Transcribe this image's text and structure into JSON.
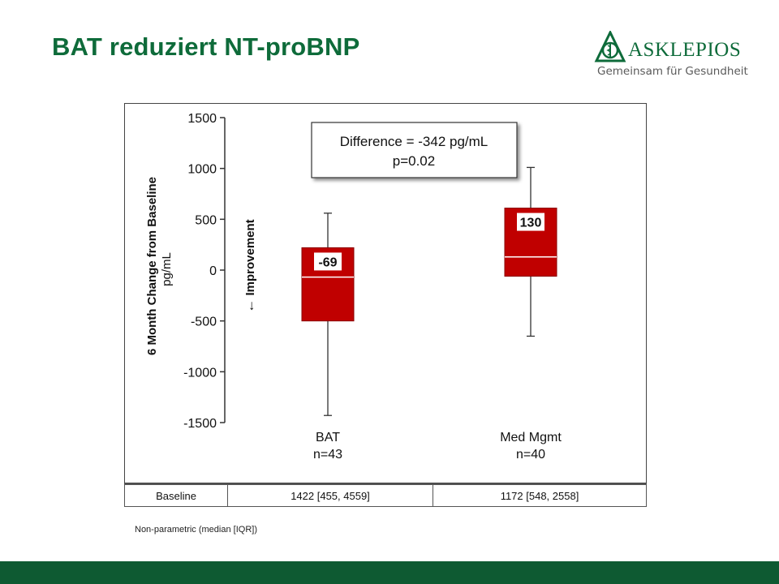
{
  "slide": {
    "title": "BAT reduziert NT-proBNP"
  },
  "logo": {
    "name": "ASKLEPIOS",
    "tagline": "Gemeinsam für Gesundheit"
  },
  "chart_data": {
    "type": "boxplot",
    "ylabel": "6 Month Change from Baseline",
    "yunit": "pg/mL",
    "ylim": [
      -1500,
      1500
    ],
    "yticks": [
      1500,
      1000,
      500,
      0,
      -500,
      -1000,
      -1500
    ],
    "annotation": {
      "line1": "Difference = -342 pg/mL",
      "line2": "p=0.02"
    },
    "arrow_label": "Improvement",
    "groups": [
      {
        "label": "BAT",
        "n_label": "n=43",
        "median": -69,
        "median_label": "-69",
        "q1": -500,
        "q3": 220,
        "whisker_low": -1430,
        "whisker_high": 560
      },
      {
        "label": "Med Mgmt",
        "n_label": "n=40",
        "median": 130,
        "median_label": "130",
        "q1": -60,
        "q3": 610,
        "whisker_low": -650,
        "whisker_high": 1010
      }
    ],
    "box_color": "#c00000"
  },
  "baseline": {
    "label": "Baseline",
    "bat": "1422 [455, 4559]",
    "med": "1172 [548, 2558]"
  },
  "note": "Non-parametric (median [IQR])"
}
